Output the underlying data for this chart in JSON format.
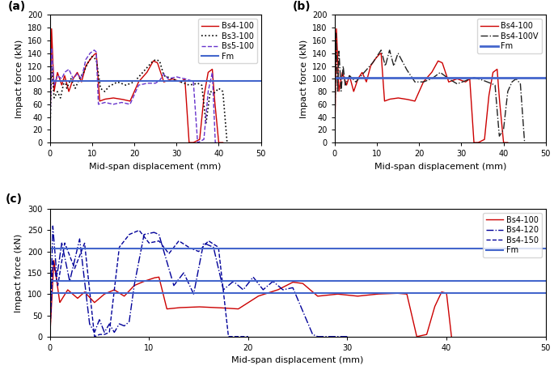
{
  "panel_a": {
    "label": "(a)",
    "ylim": [
      0,
      200
    ],
    "xlim": [
      0,
      50
    ],
    "yticks": [
      0,
      20,
      40,
      60,
      80,
      100,
      120,
      140,
      160,
      180,
      200
    ],
    "xticks": [
      0,
      10,
      20,
      30,
      40,
      50
    ],
    "ylabel": "Impact force (kN)",
    "xlabel": "Mid-span displacement (mm)",
    "fm_value": 97,
    "series": [
      {
        "label": "Bs4-100",
        "color": "#cc0000",
        "linestyle": "solid",
        "linewidth": 1.0
      },
      {
        "label": "Bs3-100",
        "color": "#000000",
        "linestyle": "dotted",
        "linewidth": 1.2
      },
      {
        "label": "Bs5-100",
        "color": "#6633cc",
        "linestyle": "dashed",
        "linewidth": 1.0
      },
      {
        "label": "Fm",
        "color": "#4466cc",
        "linestyle": "solid",
        "linewidth": 1.5
      }
    ]
  },
  "panel_b": {
    "label": "(b)",
    "ylim": [
      0,
      200
    ],
    "xlim": [
      0,
      50
    ],
    "yticks": [
      0,
      20,
      40,
      60,
      80,
      100,
      120,
      140,
      160,
      180,
      200
    ],
    "xticks": [
      0,
      10,
      20,
      30,
      40,
      50
    ],
    "ylabel": "Impact force (kN)",
    "xlabel": "Mid-span displacement (mm)",
    "fm_value": 102,
    "series": [
      {
        "label": "Bs4-100",
        "color": "#cc0000",
        "linestyle": "solid",
        "linewidth": 1.0
      },
      {
        "label": "Bs4-100V",
        "color": "#222222",
        "linestyle": "dashdot",
        "linewidth": 1.0
      },
      {
        "label": "Fm",
        "color": "#4466cc",
        "linestyle": "solid",
        "linewidth": 2.0
      }
    ]
  },
  "panel_c": {
    "label": "(c)",
    "ylim": [
      0,
      300
    ],
    "xlim": [
      0,
      50
    ],
    "yticks": [
      0,
      50,
      100,
      150,
      200,
      250,
      300
    ],
    "xticks": [
      0,
      10,
      20,
      30,
      40,
      50
    ],
    "ylabel": "Impact force (kN)",
    "xlabel": "Mid-span displacement (mm)",
    "fm_values": [
      102,
      130,
      207
    ],
    "series": [
      {
        "label": "Bs4-100",
        "color": "#cc0000",
        "linestyle": "solid",
        "linewidth": 1.0
      },
      {
        "label": "Bs4-120",
        "color": "#000099",
        "linestyle": "dashdot",
        "linewidth": 1.0
      },
      {
        "label": "Bs4-150",
        "color": "#000099",
        "linestyle": "dashed",
        "linewidth": 1.0
      },
      {
        "label": "Fm",
        "color": "#4466cc",
        "linestyle": "solid",
        "linewidth": 1.5
      }
    ]
  },
  "background_color": "#ffffff",
  "legend_fontsize": 7,
  "axis_fontsize": 8,
  "tick_fontsize": 7,
  "label_fontsize": 10
}
